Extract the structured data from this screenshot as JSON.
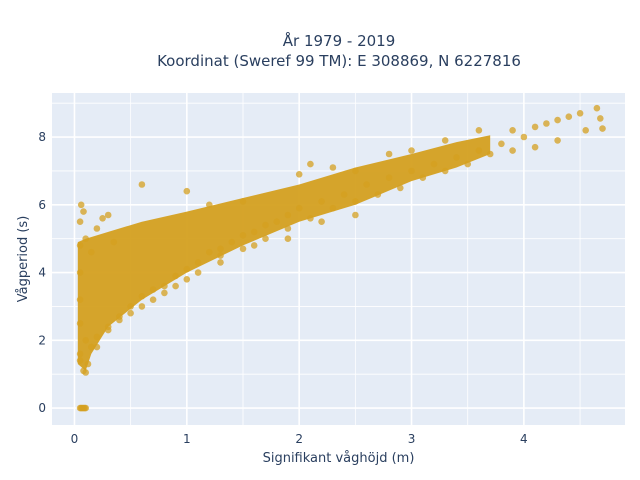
{
  "chart_data": {
    "type": "scatter",
    "title": "År 1979 - 2019",
    "subtitle": "Koordinat (Sweref 99 TM): E 308869, N 6227816",
    "xlabel": "Signifikant våghöjd (m)",
    "ylabel": "Vågperiod (s)",
    "xlim": [
      -0.2,
      4.9
    ],
    "ylim": [
      -0.5,
      9.3
    ],
    "x_ticks": [
      "0",
      "1",
      "2",
      "3",
      "4"
    ],
    "y_ticks": [
      "0",
      "2",
      "4",
      "6",
      "8"
    ],
    "grid": true,
    "legend": "none",
    "marker_color": "#D4A020",
    "plot_background": "#E5ECF6",
    "series": [
      {
        "values": [
          [
            0.05,
            0.0
          ],
          [
            0.06,
            0.0
          ],
          [
            0.07,
            0.0
          ],
          [
            0.08,
            0.0
          ],
          [
            0.09,
            0.0
          ],
          [
            0.1,
            0.0
          ],
          [
            0.05,
            1.4
          ],
          [
            0.05,
            1.6
          ],
          [
            0.08,
            1.1
          ],
          [
            0.1,
            1.05
          ],
          [
            0.12,
            1.3
          ],
          [
            0.05,
            2.5
          ],
          [
            0.05,
            3.2
          ],
          [
            0.05,
            4.0
          ],
          [
            0.05,
            4.8
          ],
          [
            0.05,
            5.5
          ],
          [
            0.06,
            6.0
          ],
          [
            0.08,
            5.8
          ],
          [
            0.1,
            5.0
          ],
          [
            0.15,
            4.6
          ],
          [
            0.2,
            5.3
          ],
          [
            0.25,
            5.6
          ],
          [
            0.3,
            5.7
          ],
          [
            0.35,
            4.9
          ],
          [
            0.1,
            2.0
          ],
          [
            0.15,
            1.8
          ],
          [
            0.2,
            2.1
          ],
          [
            0.3,
            2.4
          ],
          [
            0.4,
            2.7
          ],
          [
            0.5,
            3.0
          ],
          [
            0.6,
            3.3
          ],
          [
            0.7,
            3.5
          ],
          [
            0.8,
            3.6
          ],
          [
            0.9,
            3.9
          ],
          [
            1.0,
            4.1
          ],
          [
            1.1,
            4.3
          ],
          [
            1.2,
            4.6
          ],
          [
            1.3,
            4.7
          ],
          [
            1.4,
            4.9
          ],
          [
            1.5,
            5.1
          ],
          [
            1.6,
            5.2
          ],
          [
            1.7,
            5.4
          ],
          [
            1.8,
            5.5
          ],
          [
            1.9,
            5.7
          ],
          [
            2.0,
            5.9
          ],
          [
            2.2,
            6.1
          ],
          [
            2.4,
            6.3
          ],
          [
            2.6,
            6.6
          ],
          [
            2.8,
            6.8
          ],
          [
            3.0,
            7.0
          ],
          [
            3.2,
            7.2
          ],
          [
            3.4,
            7.4
          ],
          [
            3.6,
            7.6
          ],
          [
            3.8,
            7.8
          ],
          [
            0.6,
            6.6
          ],
          [
            1.0,
            6.4
          ],
          [
            1.2,
            6.0
          ],
          [
            1.5,
            6.1
          ],
          [
            2.0,
            6.9
          ],
          [
            2.1,
            7.2
          ],
          [
            2.3,
            7.1
          ],
          [
            2.5,
            7.0
          ],
          [
            2.8,
            7.5
          ],
          [
            3.0,
            7.6
          ],
          [
            3.3,
            7.9
          ],
          [
            3.6,
            8.2
          ],
          [
            3.9,
            8.2
          ],
          [
            4.0,
            8.0
          ],
          [
            4.1,
            8.3
          ],
          [
            4.2,
            8.4
          ],
          [
            4.3,
            8.5
          ],
          [
            4.4,
            8.6
          ],
          [
            4.5,
            8.7
          ],
          [
            4.55,
            8.2
          ],
          [
            4.65,
            8.85
          ],
          [
            4.68,
            8.55
          ],
          [
            4.7,
            8.25
          ],
          [
            4.3,
            7.9
          ],
          [
            4.1,
            7.7
          ],
          [
            3.9,
            7.6
          ],
          [
            3.7,
            7.5
          ],
          [
            3.5,
            7.2
          ],
          [
            3.3,
            7.0
          ],
          [
            3.1,
            6.8
          ],
          [
            2.9,
            6.5
          ],
          [
            2.7,
            6.3
          ],
          [
            2.5,
            6.1
          ],
          [
            2.3,
            5.9
          ],
          [
            2.1,
            5.6
          ],
          [
            1.9,
            5.3
          ],
          [
            1.7,
            5.0
          ],
          [
            1.5,
            4.7
          ],
          [
            1.3,
            4.3
          ],
          [
            1.1,
            4.0
          ],
          [
            0.9,
            3.6
          ],
          [
            0.7,
            3.2
          ],
          [
            0.5,
            2.8
          ],
          [
            0.3,
            2.3
          ],
          [
            2.5,
            5.7
          ],
          [
            2.2,
            5.5
          ],
          [
            1.9,
            5.0
          ],
          [
            1.6,
            4.8
          ],
          [
            1.3,
            4.5
          ],
          [
            1.0,
            3.8
          ],
          [
            0.8,
            3.4
          ],
          [
            0.6,
            3.0
          ],
          [
            0.4,
            2.6
          ],
          [
            0.2,
            1.8
          ]
        ]
      }
    ]
  }
}
